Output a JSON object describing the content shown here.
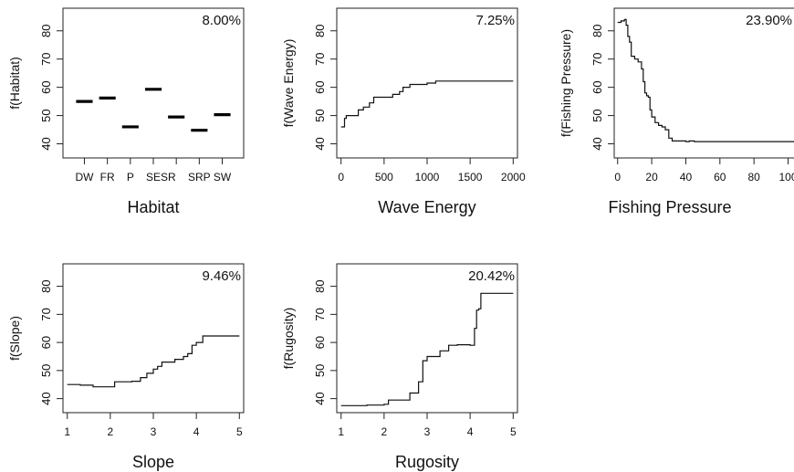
{
  "chart_data": [
    {
      "type": "bar",
      "title": "",
      "xlabel": "Habitat",
      "ylabel": "f(Habitat)",
      "importance": "8.00%",
      "ylim": [
        35,
        88
      ],
      "yticks": [
        40,
        50,
        60,
        70,
        80
      ],
      "categories": [
        "DW",
        "FR",
        "P",
        "SE",
        "SR",
        "SRP",
        "SW"
      ],
      "category_labels": [
        "DW",
        "FR",
        "P",
        "SESR",
        "",
        "SRP",
        "SW"
      ],
      "values": [
        55.0,
        56.2,
        46.0,
        59.3,
        49.5,
        44.8,
        50.3
      ]
    },
    {
      "type": "line",
      "title": "",
      "xlabel": "Wave Energy",
      "ylabel": "f(Wave Energy)",
      "importance": "7.25%",
      "xlim": [
        -50,
        2050
      ],
      "ylim": [
        35,
        88
      ],
      "xticks": [
        0,
        500,
        1000,
        1500,
        2000
      ],
      "yticks": [
        40,
        50,
        60,
        70,
        80
      ],
      "x": [
        0,
        40,
        60,
        150,
        200,
        260,
        330,
        380,
        500,
        600,
        680,
        720,
        800,
        1000,
        1100,
        1300,
        2000
      ],
      "y": [
        46.0,
        49.0,
        50.0,
        50.0,
        52.0,
        53.0,
        54.5,
        56.5,
        56.5,
        57.5,
        58.5,
        60.0,
        61.0,
        61.5,
        62.2,
        62.2,
        62.2
      ]
    },
    {
      "type": "line",
      "title": "",
      "xlabel": "Fishing Pressure",
      "ylabel": "f(Fishing Pressure)",
      "importance": "23.90%",
      "xlim": [
        -2,
        104
      ],
      "ylim": [
        35,
        88
      ],
      "xticks": [
        0,
        20,
        40,
        60,
        80,
        100
      ],
      "yticks": [
        40,
        50,
        60,
        70,
        80
      ],
      "x": [
        0,
        2,
        4,
        5,
        6,
        7,
        8,
        10,
        12,
        14,
        15,
        16,
        17,
        18,
        19,
        20,
        22,
        24,
        26,
        28,
        30,
        32,
        35,
        40,
        42,
        45,
        104
      ],
      "y": [
        83.0,
        83.5,
        84.0,
        82.0,
        78.0,
        76.0,
        71.0,
        70.0,
        69.0,
        66.5,
        62.0,
        58.0,
        57.0,
        56.5,
        52.0,
        49.5,
        47.5,
        46.5,
        46.0,
        45.0,
        42.0,
        41.0,
        41.0,
        40.8,
        41.0,
        40.8,
        40.8
      ]
    },
    {
      "type": "line",
      "title": "",
      "xlabel": "Slope",
      "ylabel": "f(Slope)",
      "importance": "9.46%",
      "xlim": [
        0.9,
        5.1
      ],
      "ylim": [
        35,
        88
      ],
      "xticks": [
        1,
        2,
        3,
        4,
        5
      ],
      "yticks": [
        40,
        50,
        60,
        70,
        80
      ],
      "x": [
        1.0,
        1.3,
        1.6,
        2.0,
        2.1,
        2.5,
        2.7,
        2.85,
        3.0,
        3.1,
        3.2,
        3.3,
        3.5,
        3.7,
        3.8,
        3.9,
        4.0,
        4.15,
        5.0
      ],
      "y": [
        45.0,
        44.8,
        44.2,
        44.2,
        46.0,
        46.2,
        47.5,
        49.0,
        50.5,
        51.5,
        53.0,
        53.0,
        54.0,
        55.0,
        56.0,
        59.0,
        60.0,
        62.3,
        62.3
      ]
    },
    {
      "type": "line",
      "title": "",
      "xlabel": "Rugosity",
      "ylabel": "f(Rugosity)",
      "importance": "20.42%",
      "xlim": [
        0.9,
        5.1
      ],
      "ylim": [
        35,
        88
      ],
      "xticks": [
        1,
        2,
        3,
        4,
        5
      ],
      "yticks": [
        40,
        50,
        60,
        70,
        80
      ],
      "x": [
        1.0,
        1.6,
        2.0,
        2.1,
        2.5,
        2.6,
        2.8,
        2.9,
        3.0,
        3.1,
        3.3,
        3.5,
        3.7,
        4.0,
        4.1,
        4.15,
        4.2,
        4.25,
        5.0
      ],
      "y": [
        37.5,
        37.7,
        38.0,
        39.5,
        39.5,
        42.0,
        46.0,
        53.5,
        55.0,
        55.0,
        57.0,
        59.0,
        59.2,
        59.0,
        65.0,
        71.5,
        72.0,
        77.5,
        77.5
      ]
    }
  ]
}
